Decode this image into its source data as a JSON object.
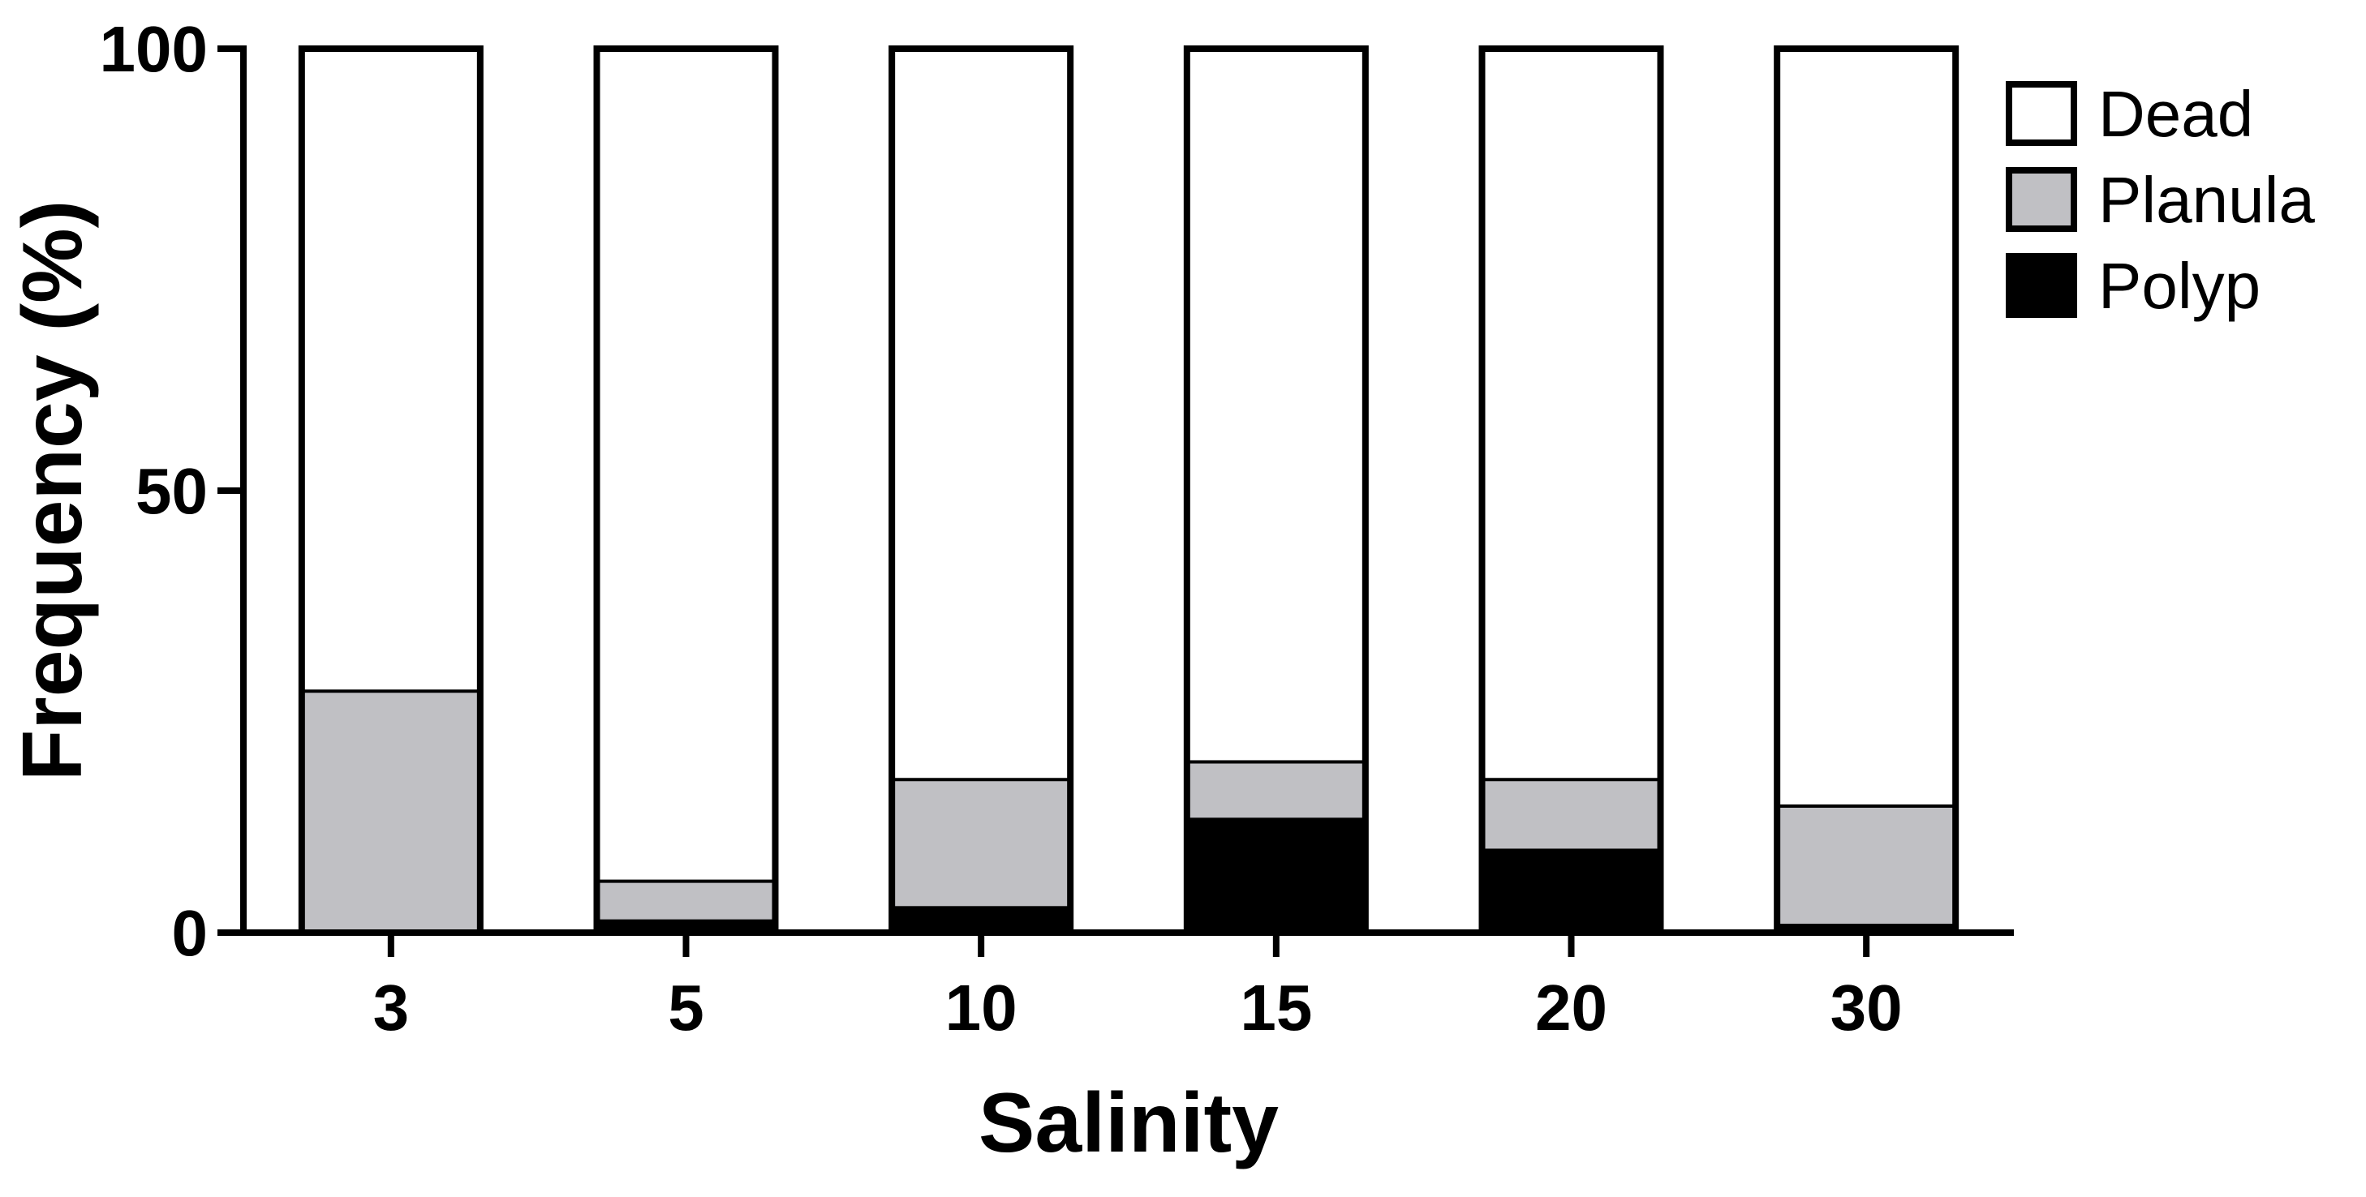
{
  "chart_data": {
    "type": "bar",
    "stacked": true,
    "title": "",
    "xlabel": "Salinity",
    "ylabel": "Frequency (%)",
    "ylim": [
      0,
      100
    ],
    "yticks": [
      "0",
      "50",
      "100"
    ],
    "categories": [
      "3",
      "5",
      "10",
      "15",
      "20",
      "30"
    ],
    "series": [
      {
        "name": "Polyp",
        "color": "#000000",
        "values": [
          0,
          1.5,
          3,
          13,
          9.5,
          1
        ]
      },
      {
        "name": "Planula",
        "color": "#c0c0c4",
        "values": [
          27.5,
          4.5,
          14.5,
          6.5,
          8,
          13.5
        ]
      },
      {
        "name": "Dead",
        "color": "#ffffff",
        "values": [
          72.5,
          94,
          82.5,
          80.5,
          82.5,
          85.5
        ]
      }
    ],
    "legend": {
      "position": "top-right",
      "entries": [
        "Dead",
        "Planula",
        "Polyp"
      ]
    },
    "grid": false
  }
}
